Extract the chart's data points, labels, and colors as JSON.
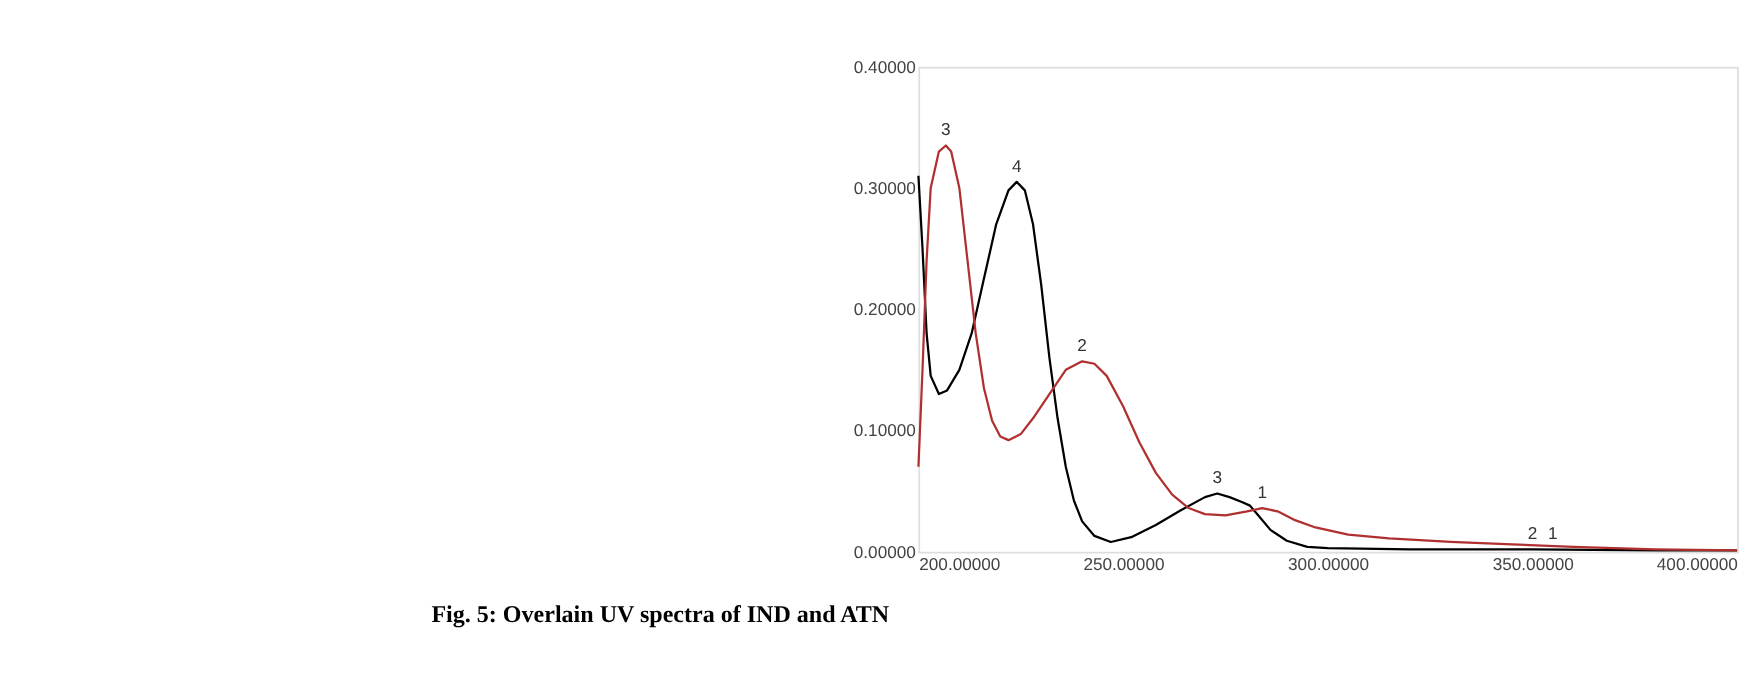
{
  "chart_data": {
    "type": "line",
    "title": "Fig. 5: Overlain UV spectra of IND and ATN",
    "xlim": [
      200,
      400
    ],
    "ylim": [
      0,
      0.4
    ],
    "xticks": [
      {
        "value": 200,
        "label": "200.00000"
      },
      {
        "value": 250,
        "label": "250.00000"
      },
      {
        "value": 300,
        "label": "300.00000"
      },
      {
        "value": 350,
        "label": "350.00000"
      },
      {
        "value": 400,
        "label": "400.00000"
      }
    ],
    "yticks": [
      {
        "value": 0,
        "label": "0.00000"
      },
      {
        "value": 0.1,
        "label": "0.10000"
      },
      {
        "value": 0.2,
        "label": "0.20000"
      },
      {
        "value": 0.3,
        "label": "0.30000"
      },
      {
        "value": 0.4,
        "label": "0.40000"
      }
    ],
    "grid": false,
    "marker": "none",
    "line_style": "solid",
    "series": [
      {
        "color": "#000000",
        "x": [
          200,
          201,
          202,
          203,
          205,
          207,
          210,
          213,
          216,
          219,
          222,
          224,
          226,
          228,
          230,
          232,
          234,
          236,
          238,
          240,
          243,
          247,
          252,
          258,
          264,
          270,
          273,
          276,
          279,
          281,
          283,
          286,
          290,
          295,
          300,
          320,
          350,
          380,
          400
        ],
        "values": [
          0.31,
          0.25,
          0.18,
          0.145,
          0.13,
          0.133,
          0.15,
          0.18,
          0.225,
          0.27,
          0.298,
          0.305,
          0.298,
          0.27,
          0.22,
          0.16,
          0.11,
          0.07,
          0.042,
          0.025,
          0.013,
          0.008,
          0.012,
          0.022,
          0.034,
          0.045,
          0.048,
          0.045,
          0.041,
          0.038,
          0.03,
          0.018,
          0.009,
          0.004,
          0.003,
          0.002,
          0.002,
          0.001,
          0.001
        ]
      },
      {
        "color": "#b03030",
        "x": [
          200,
          201,
          202,
          203,
          205,
          206.7,
          208,
          210,
          212,
          214,
          216,
          218,
          220,
          222,
          225,
          228,
          232,
          236,
          240,
          243,
          246,
          250,
          254,
          258,
          262,
          266,
          270,
          275,
          280,
          284,
          288,
          292,
          297,
          305,
          315,
          330,
          345,
          360,
          380,
          400
        ],
        "values": [
          0.07,
          0.15,
          0.24,
          0.3,
          0.33,
          0.335,
          0.33,
          0.3,
          0.24,
          0.18,
          0.135,
          0.108,
          0.095,
          0.092,
          0.097,
          0.11,
          0.13,
          0.15,
          0.157,
          0.155,
          0.145,
          0.12,
          0.09,
          0.065,
          0.047,
          0.036,
          0.031,
          0.03,
          0.033,
          0.036,
          0.033,
          0.026,
          0.02,
          0.014,
          0.011,
          0.008,
          0.006,
          0.004,
          0.002,
          0.001
        ]
      }
    ],
    "annotations": [
      {
        "text": "3",
        "x": 206.7,
        "y": 0.335
      },
      {
        "text": "4",
        "x": 224,
        "y": 0.305
      },
      {
        "text": "2",
        "x": 240,
        "y": 0.157
      },
      {
        "text": "3",
        "x": 273,
        "y": 0.048
      },
      {
        "text": "1",
        "x": 284,
        "y": 0.036
      },
      {
        "text": "2",
        "x": 350,
        "y": 0.002
      },
      {
        "text": "1",
        "x": 355,
        "y": 0.002
      }
    ]
  }
}
